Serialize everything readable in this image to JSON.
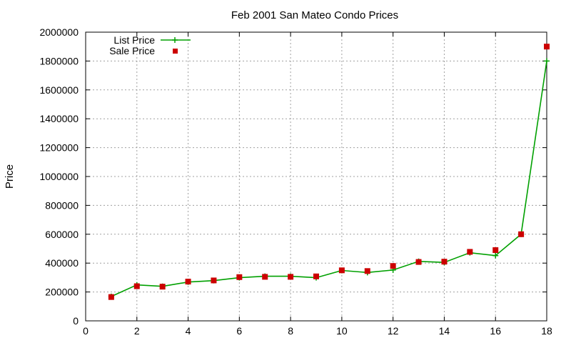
{
  "chart_data": {
    "type": "line",
    "title": "Feb 2001 San Mateo Condo Prices",
    "xlabel": "",
    "ylabel": "Price",
    "xlim": [
      0,
      18
    ],
    "ylim": [
      0,
      2000000
    ],
    "xticks": [
      0,
      2,
      4,
      6,
      8,
      10,
      12,
      14,
      16,
      18
    ],
    "yticks": [
      0,
      200000,
      400000,
      600000,
      800000,
      1000000,
      1200000,
      1400000,
      1600000,
      1800000,
      2000000
    ],
    "grid": true,
    "legend_position": "top-left",
    "x": [
      1,
      2,
      3,
      4,
      5,
      6,
      7,
      8,
      9,
      10,
      11,
      12,
      13,
      14,
      15,
      16,
      17,
      18
    ],
    "series": [
      {
        "name": "List Price",
        "style": "line-plus",
        "color": "#00a000",
        "values": [
          169000,
          249000,
          239000,
          269000,
          279000,
          299000,
          309000,
          309000,
          299000,
          349000,
          335000,
          352000,
          412000,
          405000,
          472000,
          452000,
          600000,
          1800000
        ]
      },
      {
        "name": "Sale Price",
        "style": "square-points",
        "color": "#cc0000",
        "values": [
          165000,
          240000,
          237000,
          272000,
          280000,
          303000,
          305000,
          305000,
          308000,
          350000,
          345000,
          380000,
          408000,
          410000,
          478000,
          490000,
          600000,
          1900000
        ]
      }
    ]
  }
}
